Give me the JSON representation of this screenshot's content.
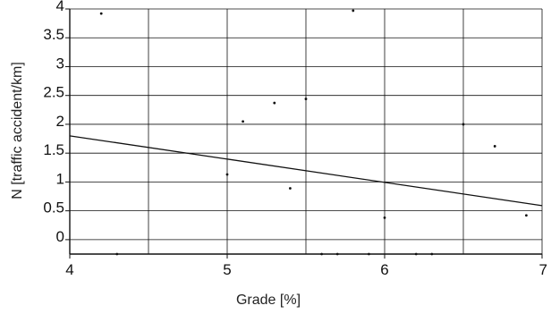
{
  "chart_data": {
    "type": "scatter",
    "title": "",
    "xlabel": "Grade [%]",
    "ylabel": "N [traffic accident/km]",
    "xlim": [
      4,
      7
    ],
    "ylim": [
      -0.25,
      4
    ],
    "x_ticks": [
      4,
      5,
      6,
      7
    ],
    "x_tick_labels": [
      "4",
      "5",
      "6",
      "7"
    ],
    "y_ticks": [
      0,
      0.5,
      1,
      1.5,
      2,
      2.5,
      3,
      3.5,
      4
    ],
    "y_tick_labels": [
      "0",
      "0.5",
      "1",
      "1.5",
      "2",
      "2.5",
      "3",
      "3.5",
      "4"
    ],
    "grid": true,
    "points": [
      {
        "x": 4.2,
        "y": 3.92
      },
      {
        "x": 4.3,
        "y": -0.25
      },
      {
        "x": 5.0,
        "y": 1.13
      },
      {
        "x": 5.1,
        "y": 2.05
      },
      {
        "x": 5.3,
        "y": 2.37
      },
      {
        "x": 5.4,
        "y": 0.89
      },
      {
        "x": 5.5,
        "y": 2.44
      },
      {
        "x": 5.6,
        "y": -0.25
      },
      {
        "x": 5.7,
        "y": -0.25
      },
      {
        "x": 5.8,
        "y": 3.97
      },
      {
        "x": 5.9,
        "y": -0.25
      },
      {
        "x": 6.0,
        "y": 0.38
      },
      {
        "x": 6.2,
        "y": -0.25
      },
      {
        "x": 6.3,
        "y": -0.25
      },
      {
        "x": 6.5,
        "y": 2.0
      },
      {
        "x": 6.7,
        "y": 1.62
      },
      {
        "x": 6.9,
        "y": 0.42
      }
    ],
    "trendline": {
      "type": "linear",
      "points": [
        {
          "x": 4.0,
          "y": 1.8
        },
        {
          "x": 7.0,
          "y": 0.59
        }
      ]
    },
    "colors": {
      "points": "#111111",
      "trendline": "#111111",
      "grid": "#111111",
      "axes": "#111111"
    }
  }
}
